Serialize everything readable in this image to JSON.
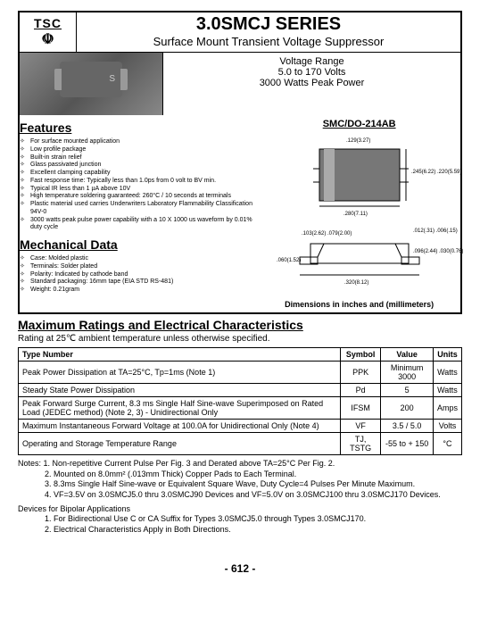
{
  "logo": {
    "top": "TSC",
    "bottom": "☫"
  },
  "title": "3.0SMCJ SERIES",
  "subtitle": "Surface Mount Transient Voltage Suppressor",
  "voltage_box": {
    "line1": "Voltage Range",
    "line2": "5.0 to 170 Volts",
    "line3": "3000 Watts Peak Power"
  },
  "package_label": "SMC/DO-214AB",
  "dimensions_note": "Dimensions in inches and (millimeters)",
  "drawing_top": {
    "width_dim": ".129(3.27)",
    "body_w": ".280(7.11)",
    "height_dim": ".245(6.22)\n.220(5.59)"
  },
  "drawing_side": {
    "pad_top": ".103(2.62)\n.079(2.00)",
    "h_left": ".060(1.52)",
    "h_right": ".096(2.44)\n.030(0.76)",
    "total_w": ".320(8.12)",
    "edge": ".012(.31)\n.006(.15)"
  },
  "features_title": "Features",
  "features": [
    "For surface mounted application",
    "Low profile package",
    "Built-in strain relief",
    "Glass passivated junction",
    "Excellent clamping capability",
    "Fast response time: Typically less than 1.0ps from 0 volt to BV min.",
    "Typical IR less than 1 µA above 10V",
    "High temperature soldering guaranteed: 260°C / 10 seconds at terminals",
    "Plastic material used carries Underwriters Laboratory Flammability Classification 94V-0",
    "3000 watts peak pulse power capability with a 10 X 1000 us waveform by 0.01% duty cycle"
  ],
  "mech_title": "Mechanical Data",
  "mech": [
    "Case: Molded plastic",
    "Terminals: Solder plated",
    "Polarity: Indicated by cathode band",
    "Standard packaging: 16mm tape (EIA STD RS-481)",
    "Weight: 0.21gram"
  ],
  "ratings_title": "Maximum Ratings and Electrical Characteristics",
  "ratings_sub": "Rating at 25℃ ambient temperature unless otherwise specified.",
  "table": {
    "headers": [
      "Type Number",
      "Symbol",
      "Value",
      "Units"
    ],
    "rows": [
      [
        "Peak Power Dissipation at TA=25°C, Tp=1ms (Note 1)",
        "PPK",
        "Minimum 3000",
        "Watts"
      ],
      [
        "Steady State Power Dissipation",
        "Pd",
        "5",
        "Watts"
      ],
      [
        "Peak Forward Surge Current, 8.3 ms Single Half Sine-wave Superimposed on Rated Load (JEDEC method) (Note 2, 3) - Unidirectional Only",
        "IFSM",
        "200",
        "Amps"
      ],
      [
        "Maximum Instantaneous Forward Voltage at 100.0A for Unidirectional Only (Note 4)",
        "VF",
        "3.5 / 5.0",
        "Volts"
      ],
      [
        "Operating and Storage Temperature Range",
        "TJ, TSTG",
        "-55 to + 150",
        "°C"
      ]
    ]
  },
  "notes_label": "Notes:",
  "notes": [
    "1. Non-repetitive Current Pulse Per Fig. 3 and Derated above TA=25°C Per Fig. 2.",
    "2. Mounted on 8.0mm² (.013mm Thick) Copper Pads to Each Terminal.",
    "3. 8.3ms Single Half Sine-wave or Equivalent Square Wave, Duty Cycle=4 Pulses Per Minute Maximum.",
    "4. VF=3.5V on 3.0SMCJ5.0 thru 3.0SMCJ90 Devices and VF=5.0V on 3.0SMCJ100 thru 3.0SMCJ170 Devices."
  ],
  "bipolar_label": "Devices for Bipolar Applications",
  "bipolar": [
    "1. For Bidirectional Use C or CA Suffix for Types 3.0SMCJ5.0 through Types 3.0SMCJ170.",
    "2. Electrical Characteristics Apply in Both Directions."
  ],
  "page_number": "- 612 -"
}
